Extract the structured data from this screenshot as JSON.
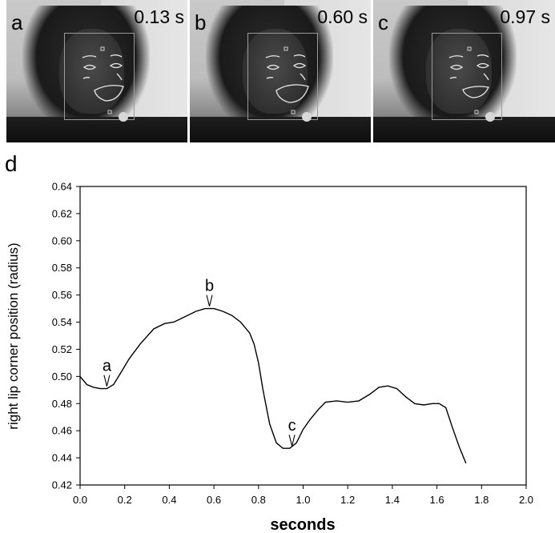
{
  "frames": [
    {
      "label": "a",
      "time": "0.13 s"
    },
    {
      "label": "b",
      "time": "0.60 s"
    },
    {
      "label": "c",
      "time": "0.97 s"
    }
  ],
  "chart_data": {
    "type": "line",
    "panel_label": "d",
    "xlabel": "seconds",
    "ylabel": "right lip corner position (radius)",
    "xlim": [
      0.0,
      2.0
    ],
    "ylim": [
      0.42,
      0.64
    ],
    "x_ticks": [
      "0.0",
      "0.2",
      "0.4",
      "0.6",
      "0.8",
      "1.0",
      "1.2",
      "1.4",
      "1.6",
      "1.8",
      "2.0"
    ],
    "y_ticks": [
      "0.42",
      "0.44",
      "0.46",
      "0.48",
      "0.50",
      "0.52",
      "0.54",
      "0.56",
      "0.58",
      "0.60",
      "0.62",
      "0.64"
    ],
    "series": [
      {
        "x": [
          0.0,
          0.03,
          0.06,
          0.09,
          0.12,
          0.15,
          0.18,
          0.22,
          0.27,
          0.33,
          0.38,
          0.42,
          0.47,
          0.52,
          0.56,
          0.6,
          0.64,
          0.68,
          0.72,
          0.76,
          0.78,
          0.8,
          0.82,
          0.85,
          0.88,
          0.91,
          0.94,
          0.97,
          1.0,
          1.03,
          1.07,
          1.1,
          1.15,
          1.2,
          1.25,
          1.3,
          1.34,
          1.38,
          1.42,
          1.46,
          1.5,
          1.54,
          1.58,
          1.61,
          1.64,
          1.67,
          1.7,
          1.73
        ],
        "y": [
          0.5,
          0.494,
          0.492,
          0.491,
          0.491,
          0.494,
          0.502,
          0.513,
          0.524,
          0.535,
          0.539,
          0.54,
          0.544,
          0.548,
          0.55,
          0.55,
          0.548,
          0.545,
          0.54,
          0.532,
          0.524,
          0.51,
          0.49,
          0.465,
          0.451,
          0.447,
          0.447,
          0.451,
          0.461,
          0.468,
          0.476,
          0.481,
          0.482,
          0.481,
          0.482,
          0.487,
          0.492,
          0.493,
          0.491,
          0.485,
          0.48,
          0.479,
          0.48,
          0.48,
          0.477,
          0.462,
          0.448,
          0.436
        ]
      }
    ],
    "annotations": [
      {
        "text": "a",
        "x": 0.12,
        "y": 0.491
      },
      {
        "text": "b",
        "x": 0.58,
        "y": 0.55
      },
      {
        "text": "c",
        "x": 0.95,
        "y": 0.447
      }
    ],
    "grid": false,
    "legend": "none"
  }
}
